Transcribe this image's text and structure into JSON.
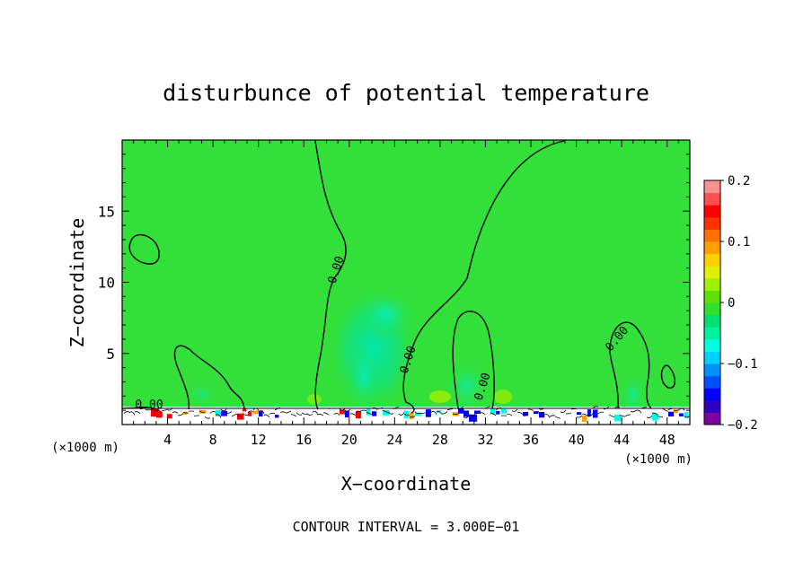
{
  "chart_data": {
    "type": "heatmap",
    "title": "disturbunce of potential temperature",
    "xlabel": "X−coordinate",
    "ylabel": "Z−coordinate",
    "x_unit": "(×1000 m)",
    "y_unit": "(×1000 m)",
    "xlim": [
      0,
      50
    ],
    "ylim": [
      0,
      20
    ],
    "x_ticks": [
      4,
      8,
      12,
      16,
      20,
      24,
      28,
      32,
      36,
      40,
      44,
      48
    ],
    "x_tick_labels": [
      "4",
      "8",
      "12",
      "16",
      "20",
      "24",
      "28",
      "32",
      "36",
      "40",
      "44",
      "48"
    ],
    "y_ticks": [
      5,
      10,
      15
    ],
    "y_tick_labels": [
      "5",
      "10",
      "15"
    ],
    "contour_interval_text": "CONTOUR INTERVAL = 3.000E−01",
    "contour_labels": [
      "0.00",
      "0.00",
      "0.00",
      "0.00",
      "0.00"
    ],
    "colorbar": {
      "min": -0.2,
      "max": 0.2,
      "tick_values": [
        0.2,
        0.1,
        0,
        -0.1,
        -0.2
      ],
      "tick_labels": [
        "0.2",
        "0.1",
        "0",
        "−0.1",
        "−0.2"
      ],
      "colors": [
        "#8000a0",
        "#3000c0",
        "#0000ff",
        "#0050ff",
        "#0090ff",
        "#00d0ff",
        "#00ffe0",
        "#00f0a0",
        "#00e070",
        "#30e030",
        "#60e000",
        "#a0f000",
        "#e0f000",
        "#ffd000",
        "#ffa000",
        "#ff7000",
        "#ff3000",
        "#ff0000",
        "#ff5050",
        "#ff9090"
      ]
    },
    "background_color": "#33e03a"
  }
}
